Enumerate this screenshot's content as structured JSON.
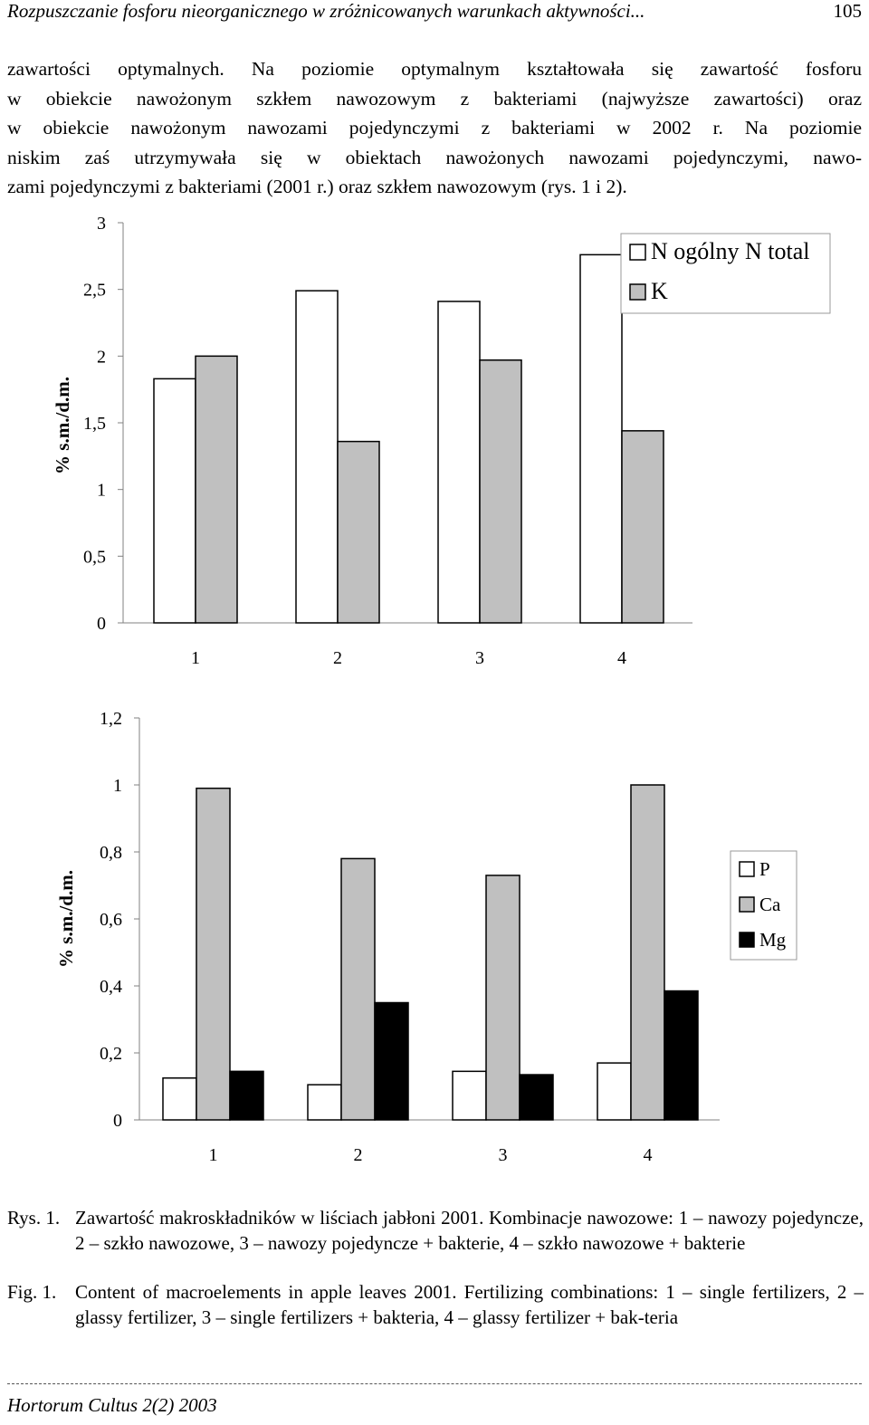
{
  "header": {
    "running_title": "Rozpuszczanie fosforu nieorganicznego w zróżnicowanych warunkach aktywności...",
    "page_number": "105"
  },
  "body_lines": [
    "zawartości optymalnych. Na poziomie optymalnym kształtowała się zawartość fosforu",
    "w obiekcie nawożonym szkłem nawozowym z bakteriami (najwyższe zawartości) oraz",
    "w obiekcie nawożonym nawozami pojedynczymi z bakteriami w 2002 r. Na poziomie",
    "niskim zaś utrzymywała się w obiektach nawożonych nawozami pojedynczymi, nawo-",
    "zami pojedynczymi z bakteriami (2001 r.) oraz szkłem nawozowym (rys. 1 i 2)."
  ],
  "chart_data": [
    {
      "type": "bar",
      "categories": [
        "1",
        "2",
        "3",
        "4"
      ],
      "series": [
        {
          "name": "N ogólny N total",
          "color": "#ffffff",
          "values": [
            1.83,
            2.49,
            2.41,
            2.76
          ]
        },
        {
          "name": "K",
          "color": "#c0c0c0",
          "values": [
            2.0,
            1.36,
            1.97,
            1.44
          ]
        }
      ],
      "ylabel": "% s.m./d.m.",
      "ylim": [
        0,
        3
      ],
      "yticks": [
        "0",
        "0,5",
        "1",
        "1,5",
        "2",
        "2,5",
        "3"
      ],
      "legend": "top-right",
      "grid": false
    },
    {
      "type": "bar",
      "categories": [
        "1",
        "2",
        "3",
        "4"
      ],
      "series": [
        {
          "name": "P",
          "color": "#ffffff",
          "values": [
            0.125,
            0.105,
            0.145,
            0.17
          ]
        },
        {
          "name": "Ca",
          "color": "#c0c0c0",
          "values": [
            0.99,
            0.78,
            0.73,
            1.0
          ]
        },
        {
          "name": "Mg",
          "color": "#000000",
          "values": [
            0.145,
            0.35,
            0.135,
            0.385
          ]
        }
      ],
      "ylabel": "% s.m./d.m.",
      "ylim": [
        0,
        1.2
      ],
      "yticks": [
        "0",
        "0,2",
        "0,4",
        "0,6",
        "0,8",
        "1",
        "1,2"
      ],
      "legend": "right",
      "grid": false
    }
  ],
  "caption": {
    "pl_label": "Rys. 1.",
    "pl_text": "Zawartość makroskładników w liściach jabłoni 2001. Kombinacje nawozowe: 1 – nawozy pojedyncze, 2 – szkło nawozowe, 3 – nawozy pojedyncze + bakterie, 4 – szkło nawozowe + bakterie",
    "en_label": "Fig. 1.",
    "en_text": "Content of macroelements in apple leaves 2001. Fertilizing combinations: 1 – single fertilizers, 2 – glassy fertilizer, 3 – single fertilizers + bakteria, 4 – glassy fertilizer + bak-teria"
  },
  "footer": {
    "journal": "Hortorum Cultus 2(2) 2003"
  }
}
